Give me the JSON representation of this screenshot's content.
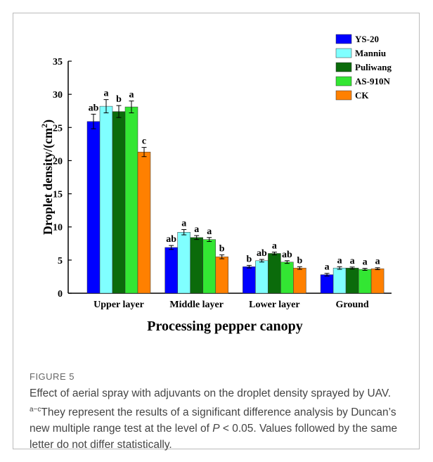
{
  "chart_data": {
    "type": "bar",
    "x_label": "Processing pepper canopy",
    "y_label": [
      "Droplet density/(cm",
      "2",
      ")"
    ],
    "categories": [
      "Upper layer",
      "Middle layer",
      "Lower layer",
      "Ground"
    ],
    "series": [
      {
        "name": "YS-20",
        "color": "#0000ff",
        "values": [
          25.9,
          6.9,
          4.0,
          2.8
        ],
        "errors": [
          1.1,
          0.3,
          0.2,
          0.2
        ],
        "letters": [
          "ab",
          "ab",
          "b",
          "a"
        ]
      },
      {
        "name": "Manniu",
        "color": "#80ffff",
        "values": [
          28.2,
          9.2,
          4.9,
          3.8
        ],
        "errors": [
          1.0,
          0.4,
          0.2,
          0.2
        ],
        "letters": [
          "a",
          "a",
          "ab",
          "a"
        ]
      },
      {
        "name": "Puliwang",
        "color": "#0b6b0b",
        "values": [
          27.4,
          8.4,
          6.0,
          3.8
        ],
        "errors": [
          0.9,
          0.3,
          0.2,
          0.15
        ],
        "letters": [
          "b",
          "a",
          "a",
          "a"
        ]
      },
      {
        "name": "AS-910N",
        "color": "#33e633",
        "values": [
          28.1,
          8.1,
          4.7,
          3.6
        ],
        "errors": [
          0.9,
          0.3,
          0.2,
          0.15
        ],
        "letters": [
          "a",
          "a",
          "ab",
          "a"
        ]
      },
      {
        "name": "CK",
        "color": "#ff8000",
        "values": [
          21.3,
          5.5,
          3.8,
          3.7
        ],
        "errors": [
          0.7,
          0.3,
          0.2,
          0.15
        ],
        "letters": [
          "c",
          "b",
          "b",
          "a"
        ]
      }
    ],
    "ylim": [
      0,
      35
    ],
    "yticks": [
      0,
      5,
      10,
      15,
      20,
      25,
      30,
      35
    ],
    "grid": false,
    "legend": "top-right"
  },
  "figure": {
    "label": "FIGURE 5",
    "caption": [
      "Effect of aerial spray with adjuvants on the droplet density sprayed by UAV. ",
      "a−c",
      "They represent the results of a significant difference analysis by Duncan’s new multiple range test at the level of ",
      "P",
      " < 0.05. Values followed by the same letter do not differ statistically."
    ]
  }
}
